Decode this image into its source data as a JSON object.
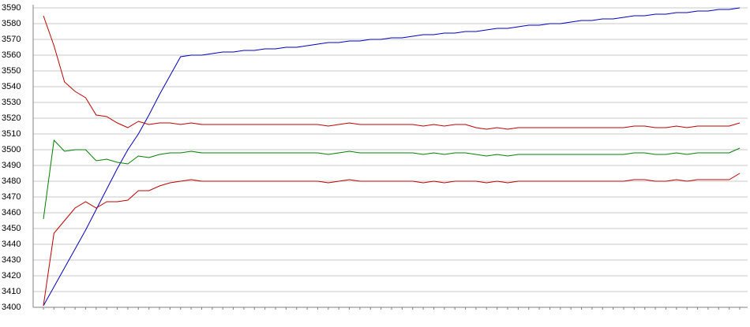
{
  "chart_data": {
    "type": "line",
    "categories": [
      null,
      null,
      null,
      null,
      null,
      null,
      null,
      null,
      null,
      null,
      null,
      null,
      null,
      null,
      null,
      null,
      null,
      null,
      null,
      null,
      null,
      null,
      null,
      null,
      null,
      null,
      null,
      null,
      null,
      null,
      null,
      null,
      null,
      null,
      null,
      null,
      null,
      null,
      null,
      null,
      null,
      null,
      null,
      null,
      null,
      null,
      null,
      null,
      null,
      null,
      null,
      null,
      null,
      null,
      null,
      null,
      null,
      null,
      null,
      null,
      null,
      null,
      null,
      null,
      null,
      null,
      null
    ],
    "ylim": [
      3400,
      3590
    ],
    "yticks": [
      3400,
      3410,
      3420,
      3430,
      3440,
      3450,
      3460,
      3470,
      3480,
      3490,
      3500,
      3510,
      3520,
      3530,
      3540,
      3550,
      3560,
      3570,
      3580,
      3590
    ],
    "grid": true,
    "series": [
      {
        "color": "#0000c0",
        "values": [
          3401,
          3413,
          3425,
          3437,
          3449,
          3462,
          3475,
          3488,
          3500,
          3510,
          3522,
          3535,
          3547,
          3559,
          3560,
          3560,
          3561,
          3562,
          3562,
          3563,
          3563,
          3564,
          3564,
          3565,
          3565,
          3566,
          3567,
          3568,
          3568,
          3569,
          3569,
          3570,
          3570,
          3571,
          3571,
          3572,
          3573,
          3573,
          3574,
          3574,
          3575,
          3575,
          3576,
          3577,
          3577,
          3578,
          3579,
          3579,
          3580,
          3580,
          3581,
          3582,
          3582,
          3583,
          3583,
          3584,
          3585,
          3585,
          3586,
          3586,
          3587,
          3587,
          3588,
          3588,
          3589,
          3589,
          3590
        ]
      },
      {
        "color": "#c00000",
        "values": [
          3585,
          3566,
          3543,
          3537,
          3533,
          3522,
          3521,
          3517,
          3514,
          3518,
          3516,
          3517,
          3517,
          3516,
          3517,
          3516,
          3516,
          3516,
          3516,
          3516,
          3516,
          3516,
          3516,
          3516,
          3516,
          3516,
          3516,
          3515,
          3516,
          3517,
          3516,
          3516,
          3516,
          3516,
          3516,
          3516,
          3515,
          3516,
          3515,
          3516,
          3516,
          3514,
          3513,
          3514,
          3513,
          3514,
          3514,
          3514,
          3514,
          3514,
          3514,
          3514,
          3514,
          3514,
          3514,
          3514,
          3515,
          3515,
          3514,
          3514,
          3515,
          3514,
          3515,
          3515,
          3515,
          3515,
          3517
        ]
      },
      {
        "color": "#008000",
        "values": [
          3456,
          3506,
          3499,
          3500,
          3500,
          3493,
          3494,
          3492,
          3491,
          3496,
          3495,
          3497,
          3498,
          3498,
          3499,
          3498,
          3498,
          3498,
          3498,
          3498,
          3498,
          3498,
          3498,
          3498,
          3498,
          3498,
          3498,
          3497,
          3498,
          3499,
          3498,
          3498,
          3498,
          3498,
          3498,
          3498,
          3497,
          3498,
          3497,
          3498,
          3498,
          3497,
          3496,
          3497,
          3496,
          3497,
          3497,
          3497,
          3497,
          3497,
          3497,
          3497,
          3497,
          3497,
          3497,
          3497,
          3498,
          3498,
          3497,
          3497,
          3498,
          3497,
          3498,
          3498,
          3498,
          3498,
          3501
        ]
      },
      {
        "color": "#c00000",
        "values": [
          3401,
          3447,
          3455,
          3463,
          3467,
          3463,
          3467,
          3467,
          3468,
          3474,
          3474,
          3477,
          3479,
          3480,
          3481,
          3480,
          3480,
          3480,
          3480,
          3480,
          3480,
          3480,
          3480,
          3480,
          3480,
          3480,
          3480,
          3479,
          3480,
          3481,
          3480,
          3480,
          3480,
          3480,
          3480,
          3480,
          3479,
          3480,
          3479,
          3480,
          3480,
          3480,
          3479,
          3480,
          3479,
          3480,
          3480,
          3480,
          3480,
          3480,
          3480,
          3480,
          3480,
          3480,
          3480,
          3480,
          3481,
          3481,
          3480,
          3480,
          3481,
          3480,
          3481,
          3481,
          3481,
          3481,
          3485
        ]
      }
    ]
  }
}
